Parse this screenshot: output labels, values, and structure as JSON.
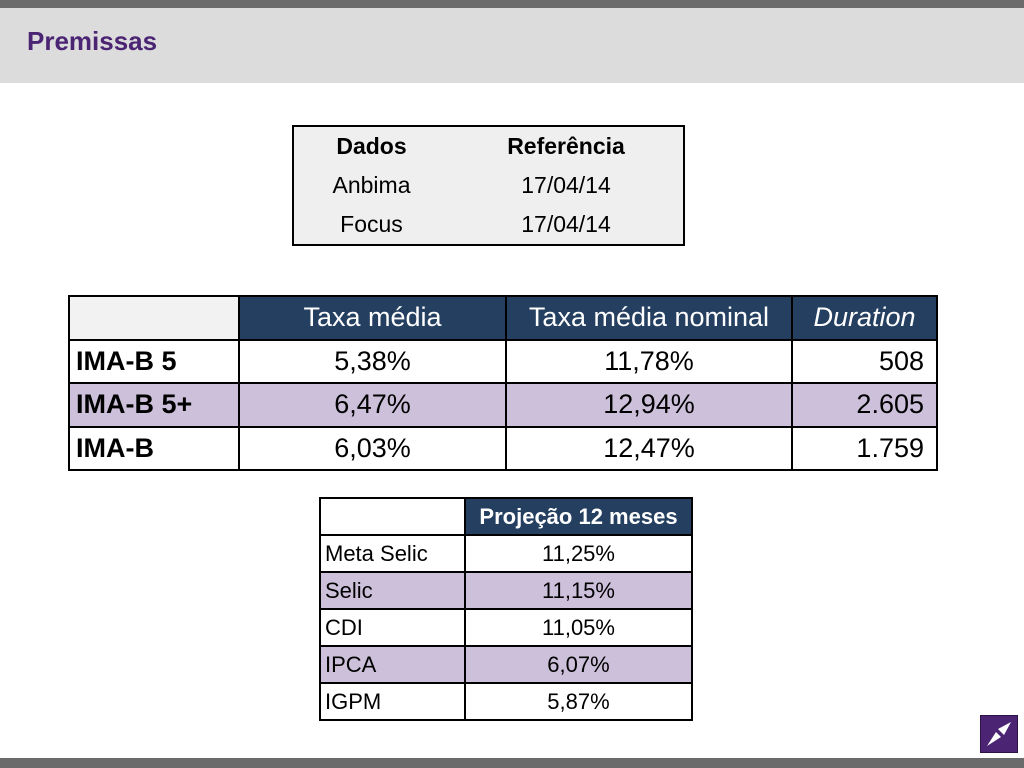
{
  "header": {
    "title": "Premissas"
  },
  "reference_table": {
    "headers": [
      "Dados",
      "Referência"
    ],
    "rows": [
      [
        "Anbima",
        "17/04/14"
      ],
      [
        "Focus",
        "17/04/14"
      ]
    ]
  },
  "ima_table": {
    "headers": [
      "",
      "Taxa média",
      "Taxa média nominal",
      "Duration"
    ],
    "rows": [
      [
        "IMA-B 5",
        "5,38%",
        "11,78%",
        "508"
      ],
      [
        "IMA-B 5+",
        "6,47%",
        "12,94%",
        "2.605"
      ],
      [
        "IMA-B",
        "6,03%",
        "12,47%",
        "1.759"
      ]
    ]
  },
  "projection_table": {
    "header": "Projeção 12 meses",
    "rows": [
      [
        "Meta Selic",
        "11,25%"
      ],
      [
        "Selic",
        "11,15%"
      ],
      [
        "CDI",
        "11,05%"
      ],
      [
        "IPCA",
        "6,07%"
      ],
      [
        "IGPM",
        "5,87%"
      ]
    ]
  },
  "colors": {
    "title": "#4b2473",
    "table_header": "#243f60",
    "alt_row": "#ccc0da",
    "logo": "#4b2473"
  },
  "icons": {
    "logo": "arrow-logo-icon"
  }
}
